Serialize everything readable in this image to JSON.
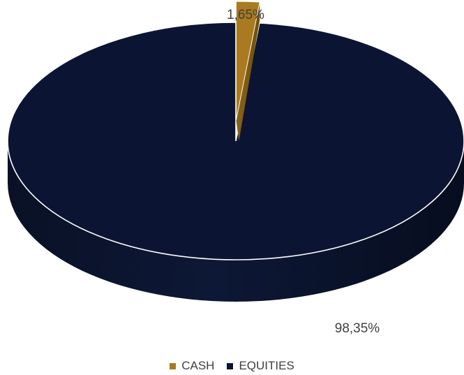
{
  "chart_data": {
    "type": "pie",
    "style": "3d",
    "categories": [
      "CASH",
      "EQUITIES"
    ],
    "values": [
      1.65,
      98.35
    ],
    "data_labels": [
      "1,65%",
      "98,35%"
    ],
    "colors": [
      "#A97A1F",
      "#0B1533"
    ],
    "exploded": "CASH",
    "legend_position": "bottom"
  }
}
